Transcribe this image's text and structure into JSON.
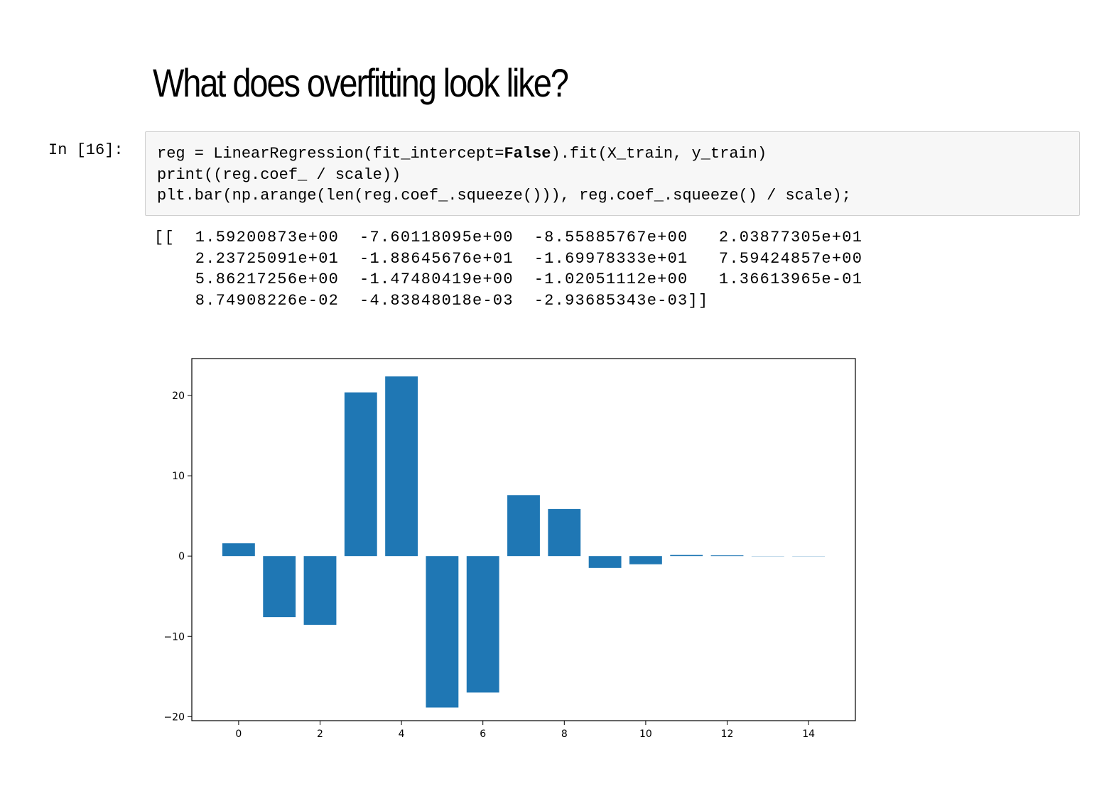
{
  "slide": {
    "title": "What does overfitting look like?"
  },
  "cell": {
    "prompt": "In [16]:",
    "code_lines": [
      {
        "before": "reg = LinearRegression(fit_intercept=",
        "keyword": "False",
        "after": ").fit(X_train, y_train)"
      },
      {
        "before": "print((reg.coef_ / scale))",
        "keyword": "",
        "after": ""
      },
      {
        "before": "plt.bar(np.arange(len(reg.coef_.squeeze())), reg.coef_.squeeze() / scale);",
        "keyword": "",
        "after": ""
      }
    ],
    "output_lines": [
      "[[  1.59200873e+00  -7.60118095e+00  -8.55885767e+00   2.03877305e+01",
      "    2.23725091e+01  -1.88645676e+01  -1.69978333e+01   7.59424857e+00",
      "    5.86217256e+00  -1.47480419e+00  -1.02051112e+00   1.36613965e-01",
      "    8.74908226e-02  -4.83848018e-03  -2.93685343e-03]]"
    ]
  },
  "chart_data": {
    "type": "bar",
    "x": [
      0,
      1,
      2,
      3,
      4,
      5,
      6,
      7,
      8,
      9,
      10,
      11,
      12,
      13,
      14
    ],
    "values": [
      1.59200873,
      -7.60118095,
      -8.55885767,
      20.3877305,
      22.3725091,
      -18.8645676,
      -16.9978333,
      7.59424857,
      5.86217256,
      -1.47480419,
      -1.02051112,
      0.136613965,
      0.0874908226,
      -0.00483848018,
      -0.00293685343
    ],
    "xticks": [
      0,
      2,
      4,
      6,
      8,
      10,
      12,
      14
    ],
    "yticks": [
      -20,
      -10,
      0,
      10,
      20
    ],
    "ytick_labels": [
      "−20",
      "−10",
      "0",
      "10",
      "20"
    ],
    "xlim": [
      -1.15,
      15.15
    ],
    "ylim": [
      -20.5,
      24.6
    ],
    "bar_width": 0.8,
    "color": "#1f77b4",
    "title": "",
    "xlabel": "",
    "ylabel": "",
    "grid": false
  }
}
